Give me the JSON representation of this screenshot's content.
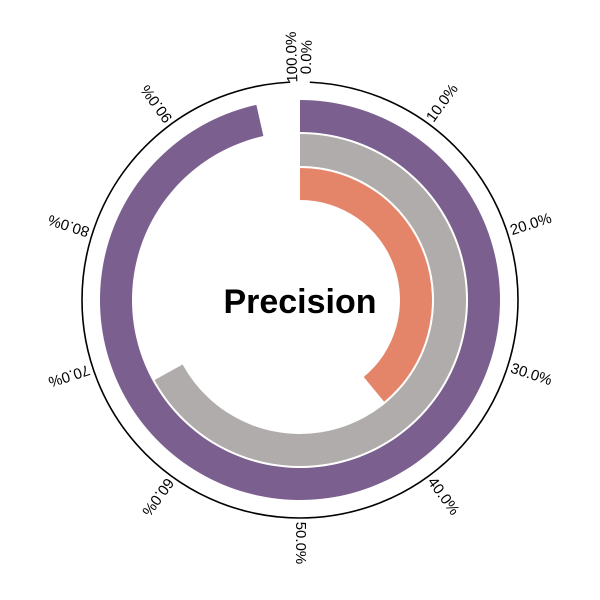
{
  "chart_data": {
    "type": "radial_bar",
    "center_label": "Precision",
    "axis": {
      "min": 0,
      "max": 100,
      "unit": "%",
      "tick_values": [
        0,
        10,
        20,
        30,
        40,
        50,
        60,
        70,
        80,
        90,
        100
      ],
      "tick_labels": [
        "0.0%",
        "10.0%",
        "20.0%",
        "30.0%",
        "40.0%",
        "50.0%",
        "60.0%",
        "70.0%",
        "80.0%",
        "90.0%",
        "100.0%"
      ]
    },
    "series": [
      {
        "values": [
          96.5
        ],
        "color": "#7a5f8f"
      },
      {
        "values": [
          67.0
        ],
        "color": "#b0acab"
      },
      {
        "values": [
          39.0
        ],
        "color": "#e4856a"
      }
    ]
  }
}
